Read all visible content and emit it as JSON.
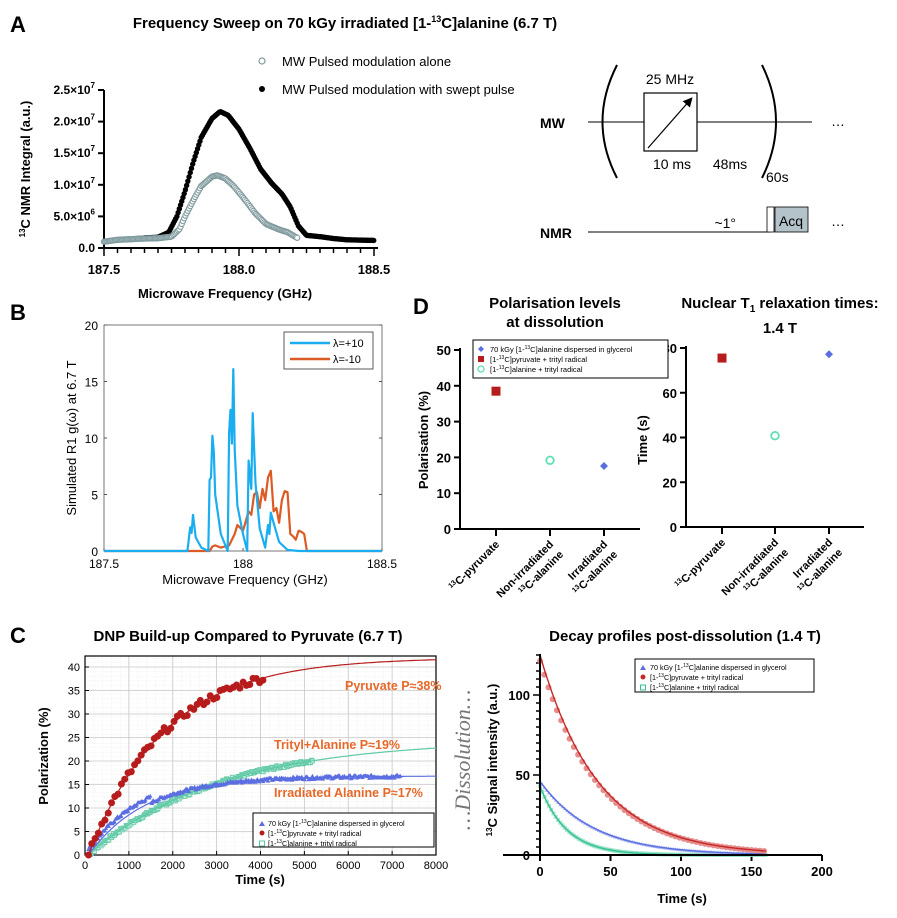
{
  "panel_labels": {
    "a": "A",
    "b": "B",
    "c": "C",
    "d": "D"
  },
  "chart_data": [
    {
      "id": "A",
      "type": "scatter",
      "title": "Frequency Sweep on 70 kGy irradiated [1-13C]alanine (6.7 T)",
      "title_parts": {
        "pre": "Frequency Sweep on 70 kGy irradiated [1-",
        "sup": "13",
        "post": "C]alanine (6.7 T)"
      },
      "xlabel": "Microwave Frequency (GHz)",
      "ylabel": "13C NMR Integral (a.u.)",
      "ylabel_parts": {
        "sup": "13",
        "post": "C NMR Integral (a.u.)"
      },
      "xlim": [
        187.5,
        188.5
      ],
      "ylim": [
        0,
        25000000
      ],
      "xticks": [
        "187.5",
        "188.0",
        "188.5"
      ],
      "xtick_values": [
        187.5,
        188.0,
        188.5
      ],
      "yticks": [
        {
          "value": 0,
          "mant": "0.0",
          "exp": ""
        },
        {
          "value": 5000000,
          "mant": "5.0×10",
          "exp": "6"
        },
        {
          "value": 10000000,
          "mant": "1.0×10",
          "exp": "7"
        },
        {
          "value": 15000000,
          "mant": "1.5×10",
          "exp": "7"
        },
        {
          "value": 20000000,
          "mant": "2.0×10",
          "exp": "7"
        },
        {
          "value": 25000000,
          "mant": "2.5×10",
          "exp": "7"
        }
      ],
      "legend": [
        "MW Pulsed modulation alone",
        "MW Pulsed modulation with swept pulse"
      ],
      "series": [
        {
          "name": "MW Pulsed modulation alone",
          "color": "#7f9a9e",
          "marker": "open-circle",
          "points": [
            [
              187.5,
              1000000.0
            ],
            [
              187.55,
              1300000.0
            ],
            [
              187.6,
              1400000.0
            ],
            [
              187.65,
              1500000.0
            ],
            [
              187.7,
              1550000.0
            ],
            [
              187.75,
              1800000.0
            ],
            [
              187.78,
              3000000.0
            ],
            [
              187.8,
              5000000.0
            ],
            [
              187.83,
              7500000.0
            ],
            [
              187.86,
              9800000.0
            ],
            [
              187.9,
              11300000.0
            ],
            [
              187.92,
              11500000.0
            ],
            [
              187.95,
              11000000.0
            ],
            [
              187.98,
              9800000.0
            ],
            [
              188.0,
              8800000.0
            ],
            [
              188.03,
              7200000.0
            ],
            [
              188.06,
              5500000.0
            ],
            [
              188.1,
              3800000.0
            ],
            [
              188.15,
              2900000.0
            ],
            [
              188.18,
              2500000.0
            ],
            [
              188.2,
              2000000.0
            ],
            [
              188.22,
              1500000.0
            ]
          ]
        },
        {
          "name": "MW Pulsed modulation with swept pulse",
          "color": "#000000",
          "marker": "filled-circle",
          "points": [
            [
              187.5,
              1000000.0
            ],
            [
              187.55,
              1300000.0
            ],
            [
              187.6,
              1400000.0
            ],
            [
              187.65,
              1600000.0
            ],
            [
              187.7,
              1700000.0
            ],
            [
              187.74,
              2500000.0
            ],
            [
              187.77,
              5000000.0
            ],
            [
              187.8,
              9000000.0
            ],
            [
              187.83,
              13500000.0
            ],
            [
              187.86,
              17500000.0
            ],
            [
              187.9,
              20500000.0
            ],
            [
              187.93,
              21600000.0
            ],
            [
              187.96,
              21000000.0
            ],
            [
              188.0,
              18800000.0
            ],
            [
              188.04,
              15800000.0
            ],
            [
              188.08,
              12500000.0
            ],
            [
              188.12,
              10300000.0
            ],
            [
              188.16,
              8500000.0
            ],
            [
              188.19,
              6500000.0
            ],
            [
              188.22,
              3500000.0
            ],
            [
              188.25,
              2000000.0
            ],
            [
              188.3,
              1800000.0
            ],
            [
              188.35,
              1500000.0
            ],
            [
              188.4,
              1300000.0
            ],
            [
              188.5,
              1200000.0
            ]
          ]
        }
      ]
    },
    {
      "id": "B",
      "type": "line",
      "title": "",
      "xlabel": "Microwave Frequency (GHz)",
      "ylabel": "Simulated R1 g(ω) at 6.7 T",
      "xlim": [
        187.5,
        188.5
      ],
      "ylim": [
        0,
        20
      ],
      "xticks": [
        "187.5",
        "188",
        "188.5"
      ],
      "xtick_values": [
        187.5,
        188.0,
        188.5
      ],
      "yticks": [
        "0",
        "5",
        "10",
        "15",
        "20"
      ],
      "ytick_values": [
        0,
        5,
        10,
        15,
        20
      ],
      "legend": [
        "λ=+10",
        "λ=-10"
      ],
      "series": [
        {
          "name": "λ=+10",
          "color": "#1aaef0",
          "points": [
            [
              187.5,
              0
            ],
            [
              187.8,
              0
            ],
            [
              187.81,
              2.1
            ],
            [
              187.815,
              1.6
            ],
            [
              187.82,
              3.2
            ],
            [
              187.83,
              1.2
            ],
            [
              187.85,
              0.3
            ],
            [
              187.875,
              0
            ],
            [
              187.88,
              6.3
            ],
            [
              187.885,
              6.5
            ],
            [
              187.89,
              10.2
            ],
            [
              187.895,
              8.8
            ],
            [
              187.9,
              5.0
            ],
            [
              187.92,
              1.5
            ],
            [
              187.94,
              0.3
            ],
            [
              187.945,
              0
            ],
            [
              187.95,
              10.5
            ],
            [
              187.955,
              12.5
            ],
            [
              187.96,
              9.5
            ],
            [
              187.965,
              16.1
            ],
            [
              187.97,
              9.0
            ],
            [
              187.98,
              4.0
            ],
            [
              188.0,
              1.5
            ],
            [
              188.015,
              0
            ],
            [
              188.02,
              8.0
            ],
            [
              188.03,
              5.5
            ],
            [
              188.035,
              12.2
            ],
            [
              188.045,
              6.0
            ],
            [
              188.06,
              2.0
            ],
            [
              188.08,
              0.3
            ],
            [
              188.09,
              2.3
            ],
            [
              188.095,
              1.5
            ],
            [
              188.1,
              3.4
            ],
            [
              188.11,
              2.5
            ],
            [
              188.13,
              0.8
            ],
            [
              188.16,
              0.1
            ],
            [
              188.2,
              0
            ],
            [
              188.5,
              0
            ]
          ]
        },
        {
          "name": "λ=-10",
          "color": "#dc5a23",
          "points": [
            [
              187.5,
              0
            ],
            [
              187.88,
              0
            ],
            [
              187.89,
              0.4
            ],
            [
              187.9,
              0.5
            ],
            [
              187.92,
              0.3
            ],
            [
              187.95,
              0.5
            ],
            [
              187.97,
              1.5
            ],
            [
              187.98,
              2.3
            ],
            [
              188.0,
              1.8
            ],
            [
              188.02,
              3.5
            ],
            [
              188.03,
              3.2
            ],
            [
              188.04,
              5.0
            ],
            [
              188.05,
              5.2
            ],
            [
              188.06,
              3.8
            ],
            [
              188.07,
              5.5
            ],
            [
              188.08,
              4.5
            ],
            [
              188.09,
              6.5
            ],
            [
              188.1,
              7.1
            ],
            [
              188.11,
              3.5
            ],
            [
              188.12,
              3.8
            ],
            [
              188.13,
              2.5
            ],
            [
              188.14,
              4.5
            ],
            [
              188.15,
              5.3
            ],
            [
              188.16,
              5.2
            ],
            [
              188.17,
              1.5
            ],
            [
              188.18,
              1.3
            ],
            [
              188.19,
              1.0
            ],
            [
              188.2,
              1.8
            ],
            [
              188.21,
              1.7
            ],
            [
              188.22,
              1.5
            ],
            [
              188.23,
              0
            ],
            [
              188.5,
              0
            ]
          ]
        }
      ]
    },
    {
      "id": "C-left",
      "type": "scatter",
      "title": "DNP Build-up Compared to Pyruvate (6.7 T)",
      "xlabel": "Time (s)",
      "ylabel": "Polarization (%)",
      "xlim": [
        0,
        8000
      ],
      "ylim": [
        0,
        42
      ],
      "xticks": [
        "0",
        "1000",
        "2000",
        "3000",
        "4000",
        "5000",
        "6000",
        "7000",
        "8000"
      ],
      "xtick_values": [
        0,
        1000,
        2000,
        3000,
        4000,
        5000,
        6000,
        7000,
        8000
      ],
      "yticks": [
        "0",
        "5",
        "10",
        "15",
        "20",
        "25",
        "30",
        "35",
        "40"
      ],
      "ytick_values": [
        0,
        5,
        10,
        15,
        20,
        25,
        30,
        35,
        40
      ],
      "grid": true,
      "legend_position": "bottom-right",
      "annotations": [
        "Pyruvate P≈38%",
        "Trityl+Alanine P≈19%",
        "Irradiated Alanine P≈17%"
      ],
      "side_text": "…Dissolution…",
      "series": [
        {
          "name": "70 kGy [1-13C]alanine dispersed in glycerol",
          "label_parts": {
            "pre": "70 kGy [1-",
            "sup": "13",
            "post": "C]alanine dispersed in glycerol"
          },
          "color": "#5b6ee1",
          "marker": "triangle",
          "fit_asymptote": 16.8,
          "fit_tau": 1300,
          "x_max": 7200
        },
        {
          "name": "[1-13C]pyruvate + trityl radical",
          "label_parts": {
            "pre": "[1-",
            "sup": "13",
            "post": "C]pyruvate +  trityl radical"
          },
          "color": "#b71c1c",
          "marker": "filled-circle",
          "fit_asymptote": 42,
          "fit_tau": 1750,
          "x_max": 4100
        },
        {
          "name": "[1-13C]alanine + trityl radical",
          "label_parts": {
            "pre": "[1-",
            "sup": "13",
            "post": "C]alanine + trityl radical"
          },
          "color": "#5ec9a5",
          "marker": "open-square",
          "fit_asymptote": 24.5,
          "fit_tau": 3000,
          "x_max": 5200
        }
      ]
    },
    {
      "id": "C-right",
      "type": "scatter",
      "title": "Decay profiles post-dissolution (1.4 T)",
      "xlabel": "Time (s)",
      "ylabel": "13C Signal intensity (a.u.)",
      "ylabel_parts": {
        "sup": "13",
        "post": "C Signal intensity (a.u.)"
      },
      "xlim": [
        0,
        200
      ],
      "ylim": [
        0,
        125
      ],
      "xticks": [
        "0",
        "50",
        "100",
        "150",
        "200"
      ],
      "xtick_values": [
        0,
        50,
        100,
        150,
        200
      ],
      "yticks": [
        "0",
        "50",
        "100"
      ],
      "ytick_values": [
        0,
        50,
        100
      ],
      "legend_position": "top-right",
      "series": [
        {
          "name": "70 kGy [1-13C]alanine dispersed in glycerol",
          "label_parts": {
            "pre": "70 kGy [1-",
            "sup": "13",
            "post": "C]alanine dispersed in glycerol"
          },
          "color": "#5b6ee1",
          "marker": "triangle",
          "s0": 46,
          "t1": 38,
          "x_max": 160
        },
        {
          "name": "[1-13C]pyruvate + trityl radical",
          "label_parts": {
            "pre": "[1-",
            "sup": "13",
            "post": "C]pyruvate +  trityl radical"
          },
          "color": "#c62828",
          "marker": "filled-circle",
          "s0": 125,
          "t1": 41,
          "x_max": 160
        },
        {
          "name": "[1-13C]alanine + trityl radical",
          "label_parts": {
            "pre": "[1-",
            "sup": "13",
            "post": "C]alanine + trityl radical"
          },
          "color": "#35c08f",
          "marker": "open-square",
          "s0": 43,
          "t1": 19,
          "x_max": 160
        }
      ]
    },
    {
      "id": "D-left",
      "type": "scatter",
      "title": "Polarisation levels at dissolution",
      "title_lines": [
        "Polarisation levels",
        "at dissolution"
      ],
      "ylabel": "Polarisation (%)",
      "ylim": [
        0,
        50
      ],
      "yticks": [
        "0",
        "10",
        "20",
        "30",
        "40",
        "50"
      ],
      "ytick_values": [
        0,
        10,
        20,
        30,
        40,
        50
      ],
      "categories": [
        {
          "l1": "13C-pyruvate",
          "l1_parts": {
            "sup": "13",
            "post": "C-pyruvate"
          },
          "l2": ""
        },
        {
          "l1": "Non-irradiated",
          "l2": "13C-alanine",
          "l2_parts": {
            "sup": "13",
            "post": "C-alanine"
          }
        },
        {
          "l1": "Irradiated",
          "l2": "13C-alanine",
          "l2_parts": {
            "sup": "13",
            "post": "C-alanine"
          }
        }
      ],
      "legend": [
        {
          "name": "70 kGy [1-13C]alanine dispersed in glycerol",
          "pre": "70 kGy [1-",
          "sup": "13",
          "post": "C]alanine dispersed in glycerol",
          "color": "#5b6ee1",
          "marker": "diamond"
        },
        {
          "name": "[1-13C]pyruvate + trityl radical",
          "pre": "[1-",
          "sup": "13",
          "post": "C]pyruvate + trityl radical",
          "color": "#b71c1c",
          "marker": "square"
        },
        {
          "name": "[1-13C]alanine + trityl radical",
          "pre": "[1-",
          "sup": "13",
          "post": "C]alanine + trityl radical",
          "color": "#5ee0b5",
          "marker": "open-circle"
        }
      ],
      "points": [
        {
          "category": "13C-pyruvate",
          "value": 38.5,
          "color": "#b71c1c",
          "marker": "square"
        },
        {
          "category": "Non-irradiated 13C-alanine",
          "value": 19.2,
          "color": "#5ee0b5",
          "marker": "open-circle"
        },
        {
          "category": "Irradiated 13C-alanine",
          "value": 17.6,
          "color": "#5b6ee1",
          "marker": "diamond"
        }
      ]
    },
    {
      "id": "D-right",
      "type": "scatter",
      "title": "Nuclear T1 relaxation times: 1.4 T",
      "title_parts": {
        "pre": "Nuclear T",
        "sub": "1",
        "post": " relaxation times:",
        "line2": "1.4 T"
      },
      "ylabel": "Time (s)",
      "ylim": [
        0,
        80
      ],
      "yticks": [
        "0",
        "20",
        "40",
        "60",
        "80"
      ],
      "ytick_values": [
        0,
        20,
        40,
        60,
        80
      ],
      "points": [
        {
          "category": "13C-pyruvate",
          "value": 75.5,
          "color": "#b71c1c",
          "marker": "square"
        },
        {
          "category": "Non-irradiated 13C-alanine",
          "value": 40.8,
          "color": "#5ee0b5",
          "marker": "open-circle"
        },
        {
          "category": "Irradiated 13C-alanine",
          "value": 77.2,
          "color": "#5b6ee1",
          "marker": "diamond"
        }
      ]
    }
  ],
  "pulse_sequence": {
    "mw_label": "MW",
    "nmr_label": "NMR",
    "sweep_width": "25 MHz",
    "pulse_duration": "10 ms",
    "delay": "48ms",
    "repeat": "60s",
    "flip_angle": "~1°",
    "acq_label": "Acq",
    "acq_color": "#b3c3c9",
    "ellipsis": "…"
  }
}
